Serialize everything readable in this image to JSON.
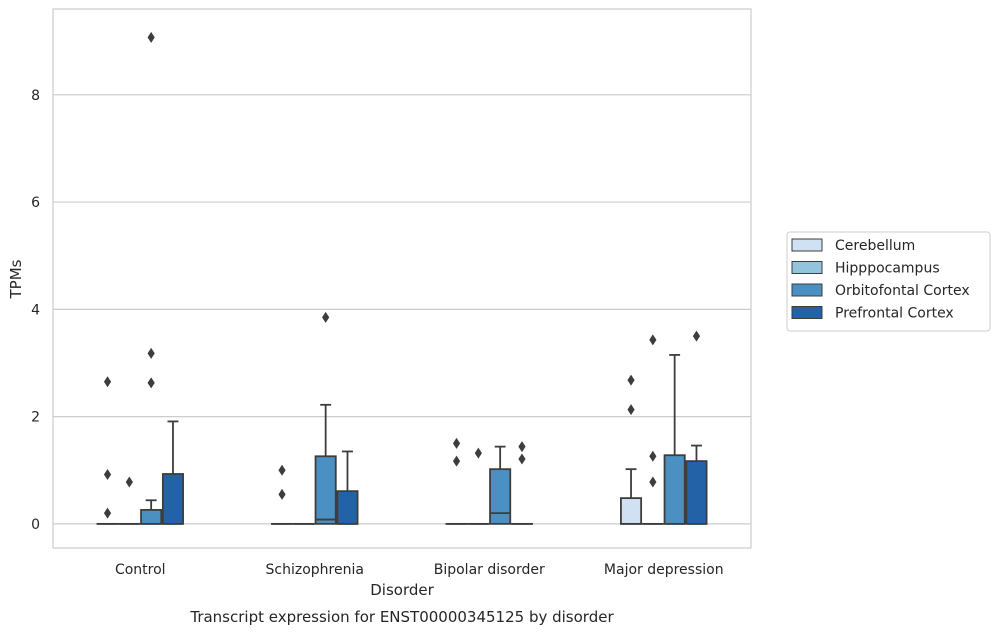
{
  "chart_data": {
    "type": "box",
    "xlabel": "Disorder",
    "ylabel": "TPMs",
    "caption": "Transcript expression for ENST00000345125 by disorder",
    "categories": [
      "Control",
      "Schizophrenia",
      "Bipolar disorder",
      "Major depression"
    ],
    "yticks": [
      0,
      2,
      4,
      6,
      8
    ],
    "ylim": [
      -0.45,
      9.6
    ],
    "grid": "horizontal",
    "legend_position": "right",
    "series": [
      {
        "name": "Cerebellum",
        "color": "#cfe1f2",
        "boxes": [
          {
            "whislo": 0,
            "q1": 0,
            "median": 0,
            "q3": 0,
            "whishi": 0,
            "fliers": [
              0.2,
              0.92,
              2.65
            ]
          },
          {
            "whislo": 0,
            "q1": 0,
            "median": 0,
            "q3": 0,
            "whishi": 0,
            "fliers": [
              0.55,
              1.0
            ]
          },
          {
            "whislo": 0,
            "q1": 0,
            "median": 0,
            "q3": 0,
            "whishi": 0,
            "fliers": [
              1.17,
              1.5
            ]
          },
          {
            "whislo": 0,
            "q1": 0,
            "median": 0,
            "q3": 0.48,
            "whishi": 1.02,
            "fliers": [
              2.13,
              2.68
            ]
          }
        ]
      },
      {
        "name": "Hipppocampus",
        "color": "#93c4de",
        "boxes": [
          {
            "whislo": 0,
            "q1": 0,
            "median": 0,
            "q3": 0,
            "whishi": 0,
            "fliers": [
              0.78
            ]
          },
          {
            "whislo": 0,
            "q1": 0,
            "median": 0,
            "q3": 0,
            "whishi": 0,
            "fliers": []
          },
          {
            "whislo": 0,
            "q1": 0,
            "median": 0,
            "q3": 0,
            "whishi": 0,
            "fliers": [
              1.32
            ]
          },
          {
            "whislo": 0,
            "q1": 0,
            "median": 0,
            "q3": 0,
            "whishi": 0,
            "fliers": [
              0.78,
              1.26,
              3.43
            ]
          }
        ]
      },
      {
        "name": "Orbitofontal Cortex",
        "color": "#4a90c2",
        "boxes": [
          {
            "whislo": 0,
            "q1": 0,
            "median": 0,
            "q3": 0.26,
            "whishi": 0.44,
            "fliers": [
              2.63,
              3.18,
              9.07
            ]
          },
          {
            "whislo": 0,
            "q1": 0,
            "median": 0.08,
            "q3": 1.26,
            "whishi": 2.22,
            "fliers": [
              3.85
            ]
          },
          {
            "whislo": 0,
            "q1": 0,
            "median": 0.2,
            "q3": 1.02,
            "whishi": 1.44,
            "fliers": []
          },
          {
            "whislo": 0,
            "q1": 0,
            "median": 0,
            "q3": 1.28,
            "whishi": 3.15,
            "fliers": []
          }
        ]
      },
      {
        "name": "Prefrontal Cortex",
        "color": "#2462a8",
        "boxes": [
          {
            "whislo": 0,
            "q1": 0,
            "median": 0,
            "q3": 0.93,
            "whishi": 1.91,
            "fliers": []
          },
          {
            "whislo": 0,
            "q1": 0,
            "median": 0,
            "q3": 0.61,
            "whishi": 1.35,
            "fliers": []
          },
          {
            "whislo": 0,
            "q1": 0,
            "median": 0,
            "q3": 0,
            "whishi": 0,
            "fliers": [
              1.21,
              1.44
            ]
          },
          {
            "whislo": 0,
            "q1": 0,
            "median": 0,
            "q3": 1.17,
            "whishi": 1.46,
            "fliers": [
              3.5
            ]
          }
        ]
      }
    ]
  }
}
